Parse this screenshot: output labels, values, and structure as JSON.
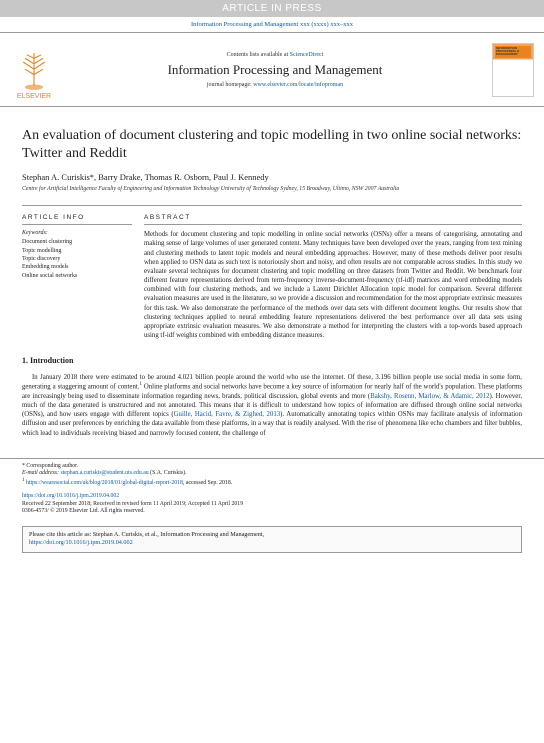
{
  "banner": "ARTICLE IN PRESS",
  "headerRef": "Information Processing and Management xxx (xxxx) xxx–xxx",
  "contentsLine": "Contents lists available at",
  "scidirect": "ScienceDirect",
  "journalName": "Information Processing and Management",
  "homepageLabel": "journal homepage:",
  "homepageUrl": "www.elsevier.com/locate/infoproman",
  "coverTitle": "INFORMATION PROCESSING & MANAGEMENT",
  "title": "An evaluation of document clustering and topic modelling in two online social networks: Twitter and Reddit",
  "authors": "Stephan A. Curiskis*, Barry Drake, Thomas R. Osborn, Paul J. Kennedy",
  "affiliation": "Centre for Artificial Intelligence Faculty of Engineering and Information Technology University of Technology Sydney, 15 Broadway, Ultimo, NSW 2007 Australia",
  "infoHead": "ARTICLE INFO",
  "absHead": "ABSTRACT",
  "keywordsLabel": "Keywords:",
  "keywords": [
    "Document clustering",
    "Topic modelling",
    "Topic discovery",
    "Embedding models",
    "Online social networks"
  ],
  "abstract": "Methods for document clustering and topic modelling in online social networks (OSNs) offer a means of categorising, annotating and making sense of large volumes of user generated content. Many techniques have been developed over the years, ranging from text mining and clustering methods to latent topic models and neural embedding approaches. However, many of these methods deliver poor results when applied to OSN data as such text is notoriously short and noisy, and often results are not comparable across studies. In this study we evaluate several techniques for document clustering and topic modelling on three datasets from Twitter and Reddit. We benchmark four different feature representations derived from term-frequency inverse-document-frequency (tf-idf) matrices and word embedding models combined with four clustering methods, and we include a Latent Dirichlet Allocation topic model for comparison. Several different evaluation measures are used in the literature, so we provide a discussion and recommendation for the most appropriate extrinsic measures for this task. We also demonstrate the performance of the methods over data sets with different document lengths. Our results show that clustering techniques applied to neural embedding feature representations delivered the best performance over all data sets using appropriate extrinsic evaluation measures. We also demonstrate a method for interpreting the clusters with a top-words based approach using tf-idf weights combined with embedding distance measures.",
  "sectionNum": "1.",
  "sectionTitle": "Introduction",
  "introP1a": "In January 2018 there were estimated to be around 4.021 billion people around the world who use the internet. Of these, 3.196 billion people use social media in some form, generating a staggering amount of content.",
  "introP1b": " Online platforms and social networks have become a key source of information for nearly half of the world's population. These platforms are increasingly being used to disseminate information regarding news, brands, political discussion, global events and more (",
  "cite1": "Bakshy, Rosenn, Marlow, & Adamic, 2012",
  "introP1c": "). However, much of the data generated is unstructured and not annotated. This means that it is difficult to understand how topics of information are diffused through online social networks (OSNs), and how users engage with different topics (",
  "cite2": "Guille, Hacid, Favre, & Zighed, 2013",
  "introP1d": "). Automatically annotating topics within OSNs may facilitate analysis of information diffusion and user preferences by enriching the data available from these platforms, in a way that is readily analysed. With the rise of phenomena like echo chambers and filter bubbles, which lead to individuals receiving biased and narrowly focused content, the challenge of",
  "footer": {
    "corresp": "* Corresponding author.",
    "emailLabel": "E-mail address:",
    "email": "stephan.a.curiskis@student.uts.edu.au",
    "emailName": "(S.A. Curiskis).",
    "noteUrl": "https://wearesocial.com/uk/blog/2018/01/global-digital-report-2018",
    "noteSuffix": ", accessed Sep. 2018.",
    "doi": "https://doi.org/10.1016/j.ipm.2019.04.002",
    "received": "Received 22 September 2018; Received in revised form 11 April 2019; Accepted 11 April 2019",
    "issn": "0306-4573/ © 2019 Elsevier Ltd. All rights reserved."
  },
  "citeBox": {
    "text": "Please cite this article as: Stephan A. Curiskis, et al., Information Processing and Management,",
    "url": "https://doi.org/10.1016/j.ipm.2019.04.002"
  },
  "elsevierLabel": "ELSEVIER"
}
